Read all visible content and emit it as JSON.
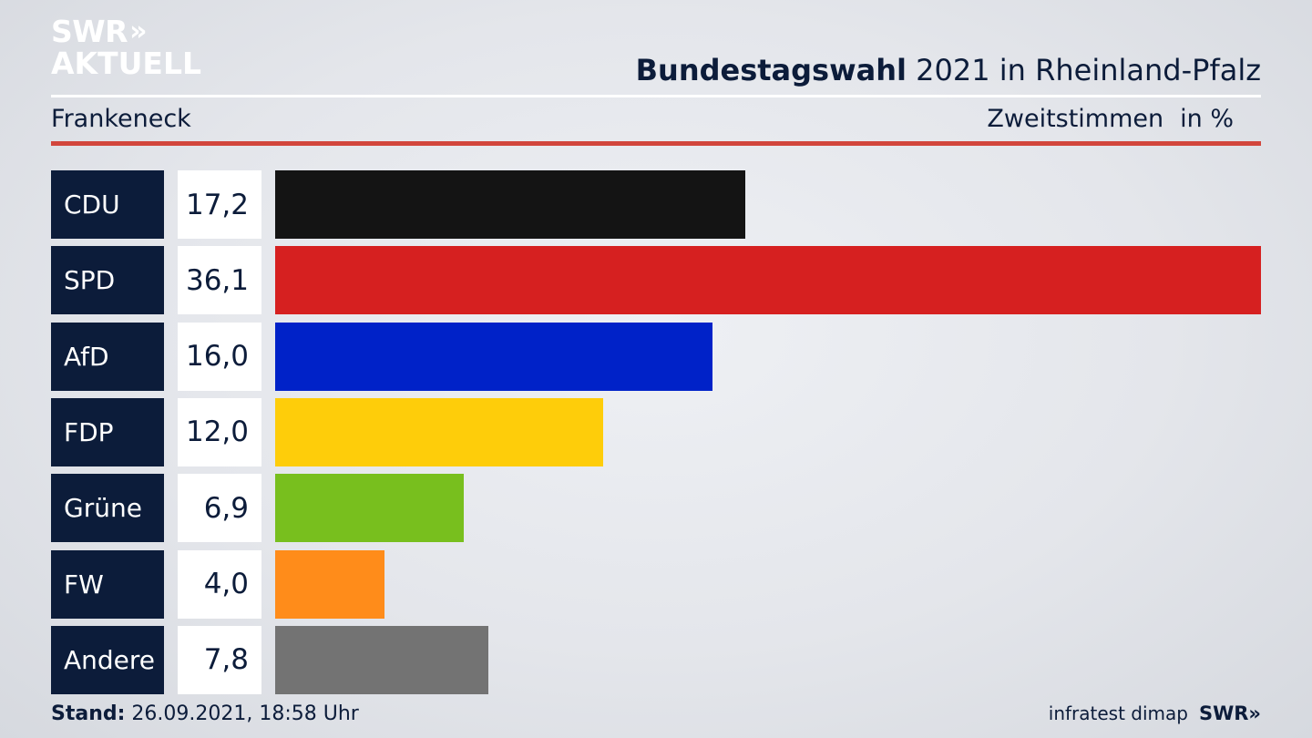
{
  "logo": {
    "line1": "SWR",
    "chevrons": "»",
    "line2": "AKTUELL"
  },
  "header": {
    "title_bold": "Bundestagswahl",
    "title_rest": "2021 in Rheinland-Pfalz",
    "region": "Frankeneck",
    "metric": "Zweitstimmen",
    "unit": "in %"
  },
  "chart_data": {
    "type": "bar",
    "orientation": "horizontal",
    "categories": [
      "CDU",
      "SPD",
      "AfD",
      "FDP",
      "Grüne",
      "FW",
      "Andere"
    ],
    "values": [
      17.2,
      36.1,
      16.0,
      12.0,
      6.9,
      4.0,
      7.8
    ],
    "value_labels": [
      "17,2",
      "36,1",
      "16,0",
      "12,0",
      "6,9",
      "4,0",
      "7,8"
    ],
    "colors": [
      "#141414",
      "#d62020",
      "#0022c8",
      "#fecd0a",
      "#78bf1e",
      "#ff8c1a",
      "#737373"
    ],
    "title": "Bundestagswahl 2021 in Rheinland-Pfalz",
    "xlabel": "Zweitstimmen",
    "ylabel": "",
    "xlim": [
      0,
      36.1
    ]
  },
  "footer": {
    "stand_label": "Stand:",
    "stand_value": "26.09.2021, 18:58 Uhr",
    "source": "infratest dimap",
    "brand": "SWR»"
  }
}
